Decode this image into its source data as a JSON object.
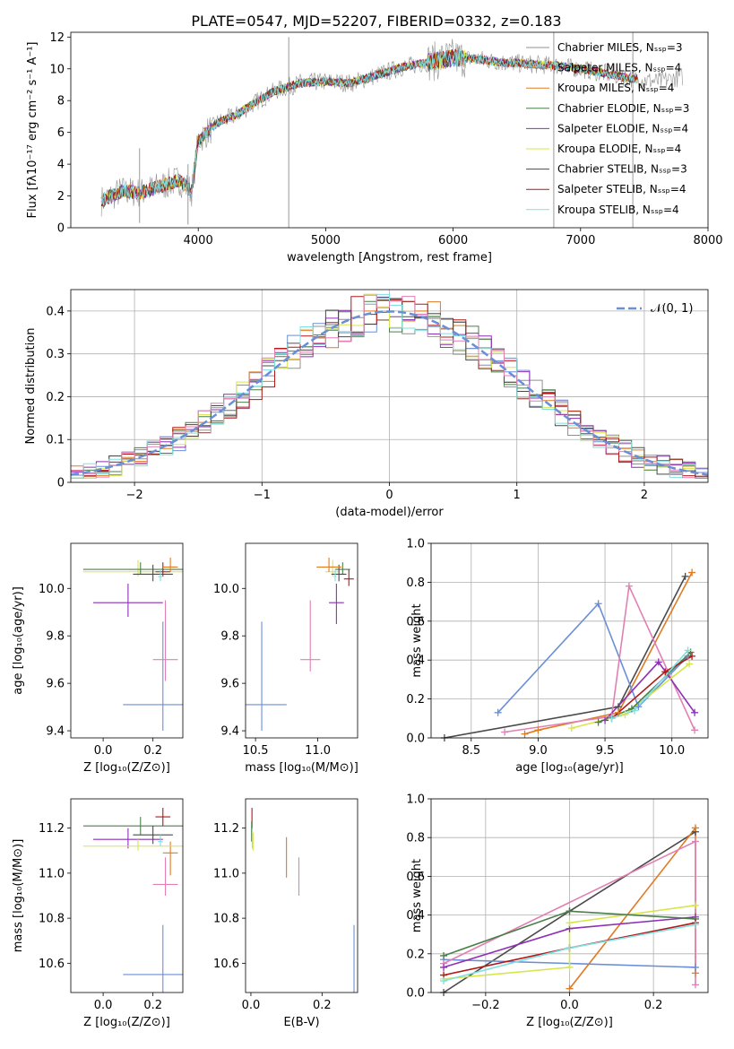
{
  "figure": {
    "title": "PLATE=0547, MJD=52207, FIBERID=0332, z=0.183"
  },
  "colors": {
    "Chabrier MILES": "#909090",
    "Salpeter MILES": "#6a8fd6",
    "Kroupa MILES": "#e07b24",
    "Chabrier ELODIE": "#4a7f4a",
    "Salpeter ELODIE": "#8e2fb6",
    "Kroupa ELODIE": "#d6e64a",
    "Chabrier STELIB": "#4a4a4a",
    "Salpeter STELIB": "#b21818",
    "Kroupa STELIB": "#7fe0e0",
    "Pink": "#e27fb3",
    "gauss": "#6a8fd6"
  },
  "chart_data": [
    {
      "id": "spectrum",
      "type": "line",
      "title": "PLATE=0547, MJD=52207, FIBERID=0332, z=0.183",
      "xlabel": "wavelength [Angstrom, rest frame]",
      "ylabel": "Flux [fλ10⁻¹⁷ erg cm⁻² s⁻¹ A⁻¹]",
      "xlim": [
        3000,
        8000
      ],
      "ylim": [
        0,
        12.3
      ],
      "xticks": [
        4000,
        5000,
        6000,
        7000,
        8000
      ],
      "yticks": [
        0,
        2,
        4,
        6,
        8,
        10,
        12
      ],
      "legend_position": "top-right",
      "legend": [
        "Chabrier MILES, Nₛₛₚ=3",
        "Salpeter MILES, Nₛₛₚ=4",
        "Kroupa MILES, Nₛₛₚ=4",
        "Chabrier ELODIE, Nₛₛₚ=3",
        "Salpeter ELODIE, Nₛₛₚ=4",
        "Kroupa ELODIE, Nₛₛₚ=4",
        "Chabrier STELIB, Nₛₛₚ=3",
        "Salpeter STELIB, Nₛₛₚ=4",
        "Kroupa STELIB, Nₛₛₚ=4"
      ],
      "continuum": {
        "x": [
          3240,
          3400,
          3550,
          3700,
          3850,
          3950,
          4000,
          4150,
          4300,
          4450,
          4600,
          4800,
          5000,
          5200,
          5400,
          5600,
          5800,
          6000,
          6200,
          6400,
          6600,
          6800,
          7000,
          7200,
          7400,
          7600,
          7800
        ],
        "y": [
          1.7,
          2.3,
          2.2,
          2.6,
          3.0,
          2.3,
          5.5,
          6.6,
          7.1,
          7.9,
          8.6,
          9.1,
          9.2,
          9.1,
          9.6,
          10.1,
          10.4,
          10.7,
          10.6,
          10.4,
          10.3,
          10.2,
          10.0,
          9.7,
          9.4,
          9.2,
          9.5
        ]
      }
    },
    {
      "id": "residual_hist",
      "type": "line",
      "xlabel": "(data-model)/error",
      "ylabel": "Normed distribution",
      "xlim": [
        -2.5,
        2.5
      ],
      "ylim": [
        0,
        0.45
      ],
      "xticks": [
        -2,
        -1,
        0,
        1,
        2
      ],
      "yticks": [
        0.0,
        0.1,
        0.2,
        0.3,
        0.4
      ],
      "grid": true,
      "legend_position": "top-right",
      "legend": [
        "𝒩(0, 1)"
      ],
      "bin_width": 0.1
    },
    {
      "id": "age_vs_Z",
      "type": "scatter",
      "xlabel": "Z [log₁₀(Z/Z⊙)]",
      "ylabel": "age  [log₁₀(age/yr)]",
      "xlim": [
        -0.13,
        0.32
      ],
      "ylim": [
        9.37,
        10.19
      ],
      "xticks": [
        0.0,
        0.2
      ],
      "yticks": [
        9.4,
        9.6,
        9.8,
        10.0
      ],
      "points": [
        {
          "series": "Salpeter MILES",
          "x": 0.24,
          "y": 9.51,
          "xerr": 0.16,
          "yerr": [
            0.11,
            0.35
          ]
        },
        {
          "series": "Pink",
          "x": 0.25,
          "y": 9.7,
          "xerr": 0.05,
          "yerr": [
            0.09,
            0.25
          ]
        },
        {
          "series": "Salpeter ELODIE",
          "x": 0.1,
          "y": 9.94,
          "xerr": 0.14,
          "yerr": [
            0.06,
            0.08
          ]
        },
        {
          "series": "Kroupa ELODIE",
          "x": 0.14,
          "y": 10.07,
          "xerr": 0.22,
          "yerr": [
            0.02,
            0.05
          ]
        },
        {
          "series": "Chabrier ELODIE",
          "x": 0.15,
          "y": 10.08,
          "xerr": 0.23,
          "yerr": [
            0.02,
            0.03
          ]
        },
        {
          "series": "Chabrier STELIB",
          "x": 0.2,
          "y": 10.06,
          "xerr": 0.08,
          "yerr": [
            0.03,
            0.04
          ]
        },
        {
          "series": "Salpeter STELIB",
          "x": 0.24,
          "y": 10.07,
          "xerr": 0.03,
          "yerr": [
            0.02,
            0.04
          ]
        },
        {
          "series": "Kroupa MILES",
          "x": 0.27,
          "y": 10.09,
          "xerr": 0.03,
          "yerr": [
            0.02,
            0.04
          ]
        },
        {
          "series": "Kroupa STELIB",
          "x": 0.23,
          "y": 10.05,
          "xerr": 0.01,
          "yerr": [
            0.02,
            0.03
          ]
        }
      ]
    },
    {
      "id": "age_vs_mass",
      "type": "scatter",
      "xlabel": "mass [log₁₀(M/M⊙)]",
      "xlim": [
        10.42,
        11.32
      ],
      "ylim": [
        9.37,
        10.19
      ],
      "xticks": [
        10.5,
        11.0
      ],
      "yticks": [
        9.4,
        9.6,
        9.8,
        10.0
      ],
      "points": [
        {
          "series": "Salpeter MILES",
          "x": 10.55,
          "y": 9.51,
          "xerr": 0.2,
          "yerr": [
            0.11,
            0.35
          ]
        },
        {
          "series": "Pink",
          "x": 10.94,
          "y": 9.7,
          "xerr": 0.08,
          "yerr": [
            0.05,
            0.25
          ]
        },
        {
          "series": "Salpeter ELODIE",
          "x": 11.15,
          "y": 9.94,
          "xerr": 0.06,
          "yerr": [
            0.09,
            0.08
          ]
        },
        {
          "series": "Kroupa ELODIE",
          "x": 11.12,
          "y": 10.07,
          "xerr": 0.06,
          "yerr": [
            0.02,
            0.05
          ]
        },
        {
          "series": "Chabrier ELODIE",
          "x": 11.2,
          "y": 10.08,
          "xerr": 0.06,
          "yerr": [
            0.02,
            0.03
          ]
        },
        {
          "series": "Chabrier STELIB",
          "x": 11.17,
          "y": 10.06,
          "xerr": 0.06,
          "yerr": [
            0.03,
            0.04
          ]
        },
        {
          "series": "Salpeter STELIB",
          "x": 11.25,
          "y": 10.04,
          "xerr": 0.04,
          "yerr": [
            0.03,
            0.04
          ]
        },
        {
          "series": "Kroupa MILES",
          "x": 11.09,
          "y": 10.09,
          "xerr": 0.1,
          "yerr": [
            0.02,
            0.04
          ]
        },
        {
          "series": "Kroupa STELIB",
          "x": 11.14,
          "y": 10.05,
          "xerr": 0.01,
          "yerr": [
            0.02,
            0.03
          ]
        }
      ]
    },
    {
      "id": "mass_weight_vs_age",
      "type": "line",
      "xlabel": "age  [log₁₀(age/yr)]",
      "ylabel": "mass weight",
      "xlim": [
        8.2,
        10.27
      ],
      "ylim": [
        0,
        1.0
      ],
      "xticks": [
        8.5,
        9.0,
        9.5,
        10.0
      ],
      "yticks": [
        0.0,
        0.2,
        0.4,
        0.6,
        0.8,
        1.0
      ],
      "grid": true,
      "series": [
        {
          "name": "Chabrier STELIB",
          "x": [
            8.3,
            9.6,
            10.1
          ],
          "y": [
            0.0,
            0.16,
            0.83
          ]
        },
        {
          "name": "Kroupa MILES",
          "x": [
            8.9,
            9.0,
            9.6,
            10.15
          ],
          "y": [
            0.02,
            0.04,
            0.13,
            0.85
          ]
        },
        {
          "name": "Salpeter MILES",
          "x": [
            8.7,
            9.45,
            9.75,
            10.12
          ],
          "y": [
            0.13,
            0.69,
            0.16,
            0.42
          ]
        },
        {
          "name": "Pink",
          "x": [
            8.75,
            9.55,
            9.68,
            10.17
          ],
          "y": [
            0.03,
            0.11,
            0.78,
            0.04
          ]
        },
        {
          "name": "Salpeter ELODIE",
          "x": [
            9.5,
            9.9,
            10.17
          ],
          "y": [
            0.09,
            0.39,
            0.13
          ]
        },
        {
          "name": "Kroupa ELODIE",
          "x": [
            9.25,
            9.65,
            10.13
          ],
          "y": [
            0.05,
            0.12,
            0.38
          ]
        },
        {
          "name": "Chabrier ELODIE",
          "x": [
            9.45,
            9.7,
            10.14
          ],
          "y": [
            0.08,
            0.15,
            0.44
          ]
        },
        {
          "name": "Salpeter STELIB",
          "x": [
            9.55,
            9.95,
            10.15
          ],
          "y": [
            0.1,
            0.34,
            0.42
          ]
        },
        {
          "name": "Kroupa STELIB",
          "x": [
            9.55,
            9.72,
            10.12
          ],
          "y": [
            0.1,
            0.14,
            0.45
          ]
        }
      ]
    },
    {
      "id": "mass_vs_Z",
      "type": "scatter",
      "xlabel": "Z [log₁₀(Z/Z⊙)]",
      "ylabel": "mass [log₁₀(M/M⊙)]",
      "xlim": [
        -0.13,
        0.32
      ],
      "ylim": [
        10.47,
        11.33
      ],
      "xticks": [
        0.0,
        0.2
      ],
      "yticks": [
        10.6,
        10.8,
        11.0,
        11.2
      ],
      "points": [
        {
          "series": "Salpeter MILES",
          "x": 0.24,
          "y": 10.55,
          "xerr": 0.16,
          "yerr": [
            0.08,
            0.22
          ]
        },
        {
          "series": "Pink",
          "x": 0.25,
          "y": 10.95,
          "xerr": 0.05,
          "yerr": [
            0.05,
            0.12
          ]
        },
        {
          "series": "Kroupa MILES",
          "x": 0.27,
          "y": 11.09,
          "xerr": 0.03,
          "yerr": [
            0.1,
            0.05
          ]
        },
        {
          "series": "Salpeter ELODIE",
          "x": 0.1,
          "y": 11.15,
          "xerr": 0.14,
          "yerr": [
            0.04,
            0.05
          ]
        },
        {
          "series": "Kroupa ELODIE",
          "x": 0.14,
          "y": 11.12,
          "xerr": 0.22,
          "yerr": [
            0.02,
            0.03
          ]
        },
        {
          "series": "Chabrier ELODIE",
          "x": 0.15,
          "y": 11.21,
          "xerr": 0.23,
          "yerr": [
            0.04,
            0.04
          ]
        },
        {
          "series": "Chabrier STELIB",
          "x": 0.2,
          "y": 11.17,
          "xerr": 0.08,
          "yerr": [
            0.04,
            0.04
          ]
        },
        {
          "series": "Salpeter STELIB",
          "x": 0.24,
          "y": 11.25,
          "xerr": 0.03,
          "yerr": [
            0.04,
            0.04
          ]
        },
        {
          "series": "Kroupa STELIB",
          "x": 0.23,
          "y": 11.14,
          "xerr": 0.01,
          "yerr": [
            0.02,
            0.03
          ]
        }
      ]
    },
    {
      "id": "mass_vs_ebv",
      "type": "scatter",
      "xlabel": "E(B-V)",
      "xlim": [
        -0.015,
        0.3
      ],
      "ylim": [
        10.47,
        11.33
      ],
      "xticks": [
        0.0,
        0.2
      ],
      "yticks": [
        10.6,
        10.8,
        11.0,
        11.2
      ],
      "points": [
        {
          "series": "Salpeter MILES",
          "x": 0.29,
          "y": 10.55,
          "yerr": [
            0.08,
            0.22
          ]
        },
        {
          "series": "Pink",
          "x": 0.135,
          "y": 10.95,
          "yerr": [
            0.05,
            0.12
          ]
        },
        {
          "series": "Kroupa MILES",
          "x": 0.1,
          "y": 11.09,
          "yerr": [
            0.11,
            0.07
          ]
        },
        {
          "series": "Salpeter STELIB",
          "x": 0.003,
          "y": 11.2,
          "yerr": [
            0.05,
            0.09
          ]
        },
        {
          "series": "Chabrier ELODIE",
          "x": 0.002,
          "y": 11.18,
          "yerr": [
            0.04,
            0.05
          ]
        },
        {
          "series": "Kroupa STELIB",
          "x": 0.004,
          "y": 11.16,
          "yerr": [
            0.05,
            0.04
          ]
        },
        {
          "series": "Kroupa ELODIE",
          "x": 0.006,
          "y": 11.14,
          "yerr": [
            0.04,
            0.04
          ]
        }
      ]
    },
    {
      "id": "mass_weight_vs_Z",
      "type": "line",
      "xlabel": "Z [log₁₀(Z/Z⊙)]",
      "ylabel": "mass weight",
      "xlim": [
        -0.33,
        0.33
      ],
      "ylim": [
        0,
        1.0
      ],
      "xticks": [
        -0.2,
        0.0,
        0.2
      ],
      "yticks": [
        0.0,
        0.2,
        0.4,
        0.6,
        0.8,
        1.0
      ],
      "grid": true,
      "series": [
        {
          "name": "Chabrier STELIB",
          "x": [
            -0.3,
            0.0,
            0.3
          ],
          "y": [
            0.0,
            0.42,
            0.83
          ]
        },
        {
          "name": "Kroupa MILES",
          "x": [
            0.0,
            0.3,
            0.3
          ],
          "y": [
            0.02,
            0.85,
            0.1
          ]
        },
        {
          "name": "Salpeter MILES",
          "x": [
            -0.3,
            0.3
          ],
          "y": [
            0.17,
            0.13
          ]
        },
        {
          "name": "Pink",
          "x": [
            -0.3,
            0.3,
            0.3
          ],
          "y": [
            0.15,
            0.78,
            0.04
          ]
        },
        {
          "name": "Salpeter ELODIE",
          "x": [
            -0.3,
            0.0,
            0.3
          ],
          "y": [
            0.13,
            0.33,
            0.39
          ]
        },
        {
          "name": "Kroupa ELODIE",
          "x": [
            -0.3,
            0.0,
            0.0,
            0.3
          ],
          "y": [
            0.07,
            0.13,
            0.36,
            0.45
          ]
        },
        {
          "name": "Chabrier ELODIE",
          "x": [
            -0.3,
            0.0,
            0.3
          ],
          "y": [
            0.19,
            0.42,
            0.38
          ]
        },
        {
          "name": "Salpeter STELIB",
          "x": [
            -0.3,
            0.0,
            0.3
          ],
          "y": [
            0.09,
            0.23,
            0.36
          ]
        },
        {
          "name": "Kroupa STELIB",
          "x": [
            -0.3,
            0.0,
            0.3
          ],
          "y": [
            0.06,
            0.23,
            0.35
          ]
        }
      ]
    }
  ]
}
